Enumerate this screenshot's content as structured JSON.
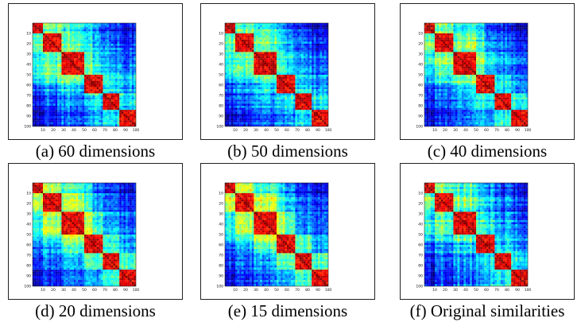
{
  "chart_data": [
    {
      "type": "heatmap",
      "caption": "(a) 60 dimensions",
      "x_ticks": [
        "10",
        "20",
        "30",
        "40",
        "50",
        "60",
        "70",
        "80",
        "90",
        "100"
      ],
      "y_ticks": [
        "10",
        "20",
        "30",
        "40",
        "50",
        "60",
        "70",
        "80",
        "90",
        "100"
      ],
      "colormap": "jet",
      "clusters": [
        [
          0,
          10
        ],
        [
          10,
          28
        ],
        [
          28,
          50
        ],
        [
          50,
          68
        ],
        [
          68,
          85
        ],
        [
          85,
          100
        ]
      ],
      "noise": 0.55,
      "band": 0.0
    },
    {
      "type": "heatmap",
      "caption": "(b) 50 dimensions",
      "x_ticks": [
        "10",
        "20",
        "30",
        "40",
        "50",
        "60",
        "70",
        "80",
        "90",
        "100"
      ],
      "y_ticks": [
        "10",
        "20",
        "30",
        "40",
        "50",
        "60",
        "70",
        "80",
        "90",
        "100"
      ],
      "colormap": "jet",
      "clusters": [
        [
          0,
          10
        ],
        [
          10,
          28
        ],
        [
          28,
          50
        ],
        [
          50,
          68
        ],
        [
          68,
          85
        ],
        [
          85,
          100
        ]
      ],
      "noise": 0.55,
      "band": 0.0
    },
    {
      "type": "heatmap",
      "caption": "(c) 40 dimensions",
      "x_ticks": [
        "10",
        "20",
        "30",
        "40",
        "50",
        "60",
        "70",
        "80",
        "90",
        "100"
      ],
      "y_ticks": [
        "10",
        "20",
        "30",
        "40",
        "50",
        "60",
        "70",
        "80",
        "90",
        "100"
      ],
      "colormap": "jet",
      "clusters": [
        [
          0,
          10
        ],
        [
          10,
          28
        ],
        [
          28,
          50
        ],
        [
          50,
          68
        ],
        [
          68,
          85
        ],
        [
          85,
          100
        ]
      ],
      "noise": 0.5,
      "band": 0.1
    },
    {
      "type": "heatmap",
      "caption": "(d) 20 dimensions",
      "x_ticks": [
        "10",
        "20",
        "30",
        "40",
        "50",
        "60",
        "70",
        "80",
        "90",
        "100"
      ],
      "y_ticks": [
        "10",
        "20",
        "30",
        "40",
        "50",
        "60",
        "70",
        "80",
        "90",
        "100"
      ],
      "colormap": "jet",
      "clusters": [
        [
          0,
          10
        ],
        [
          10,
          28
        ],
        [
          28,
          50
        ],
        [
          50,
          68
        ],
        [
          68,
          85
        ],
        [
          85,
          100
        ]
      ],
      "noise": 0.45,
      "band": 0.25
    },
    {
      "type": "heatmap",
      "caption": "(e) 15 dimensions",
      "x_ticks": [
        "10",
        "20",
        "30",
        "40",
        "50",
        "60",
        "70",
        "80",
        "90",
        "100"
      ],
      "y_ticks": [
        "10",
        "20",
        "30",
        "40",
        "50",
        "60",
        "70",
        "80",
        "90",
        "100"
      ],
      "colormap": "jet",
      "clusters": [
        [
          0,
          10
        ],
        [
          10,
          28
        ],
        [
          28,
          50
        ],
        [
          50,
          68
        ],
        [
          68,
          85
        ],
        [
          85,
          100
        ]
      ],
      "noise": 0.45,
      "band": 0.35
    },
    {
      "type": "heatmap",
      "caption": "(f) Original similarities",
      "x_ticks": [
        "10",
        "20",
        "30",
        "40",
        "50",
        "60",
        "70",
        "80",
        "90",
        "100"
      ],
      "y_ticks": [
        "10",
        "20",
        "30",
        "40",
        "50",
        "60",
        "70",
        "80",
        "90",
        "100"
      ],
      "colormap": "jet",
      "clusters": [
        [
          0,
          10
        ],
        [
          10,
          28
        ],
        [
          28,
          50
        ],
        [
          50,
          68
        ],
        [
          68,
          85
        ],
        [
          85,
          100
        ]
      ],
      "noise": 0.7,
      "band": 0.0
    }
  ]
}
